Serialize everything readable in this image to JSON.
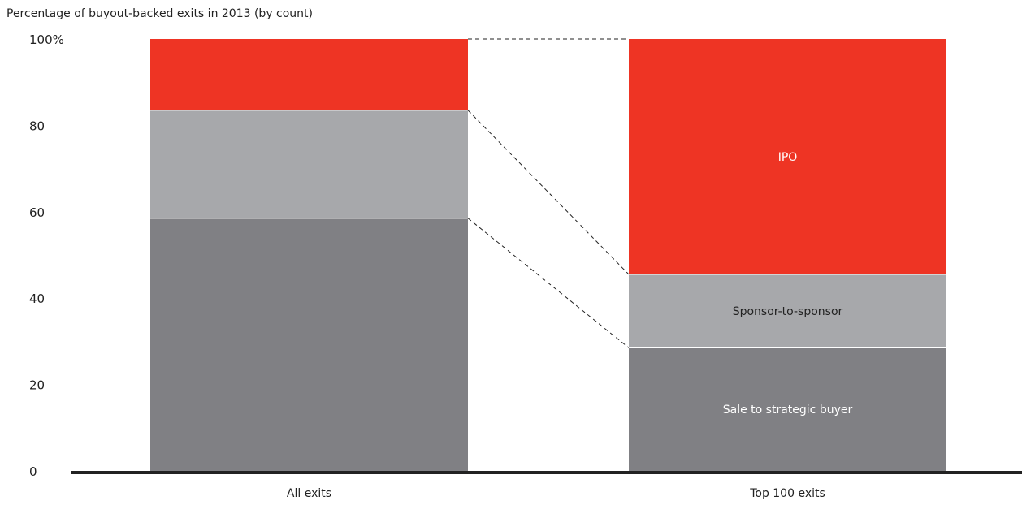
{
  "chart_data": {
    "type": "bar",
    "stacked": true,
    "ylabel": "Percentage of buyout-backed exits in 2013 (by count)",
    "ylim": [
      0,
      100
    ],
    "yticks": [
      "0",
      "20",
      "40",
      "60",
      "80",
      "100%"
    ],
    "ytick_values": [
      0,
      20,
      40,
      60,
      80,
      100
    ],
    "categories": [
      "All exits",
      "Top 100 exits"
    ],
    "series": [
      {
        "name": "Sale to strategic buyer",
        "values": [
          58.5,
          28.5
        ],
        "color": "#808084"
      },
      {
        "name": "Sponsor-to-sponsor",
        "values": [
          25,
          17
        ],
        "color": "#a7a8ab"
      },
      {
        "name": "IPO",
        "values": [
          16.5,
          54.5
        ],
        "color": "#ee3424"
      }
    ],
    "segment_labels": [
      {
        "series": "Sale to strategic buyer",
        "category": "Top 100 exits",
        "text": "Sale to strategic buyer",
        "color": "#ffffff"
      },
      {
        "series": "Sponsor-to-sponsor",
        "category": "Top 100 exits",
        "text": "Sponsor-to-sponsor",
        "color": "#222222"
      },
      {
        "series": "IPO",
        "category": "Top 100 exits",
        "text": "IPO",
        "color": "#ffffff"
      }
    ],
    "connectors": true,
    "grid": false
  }
}
